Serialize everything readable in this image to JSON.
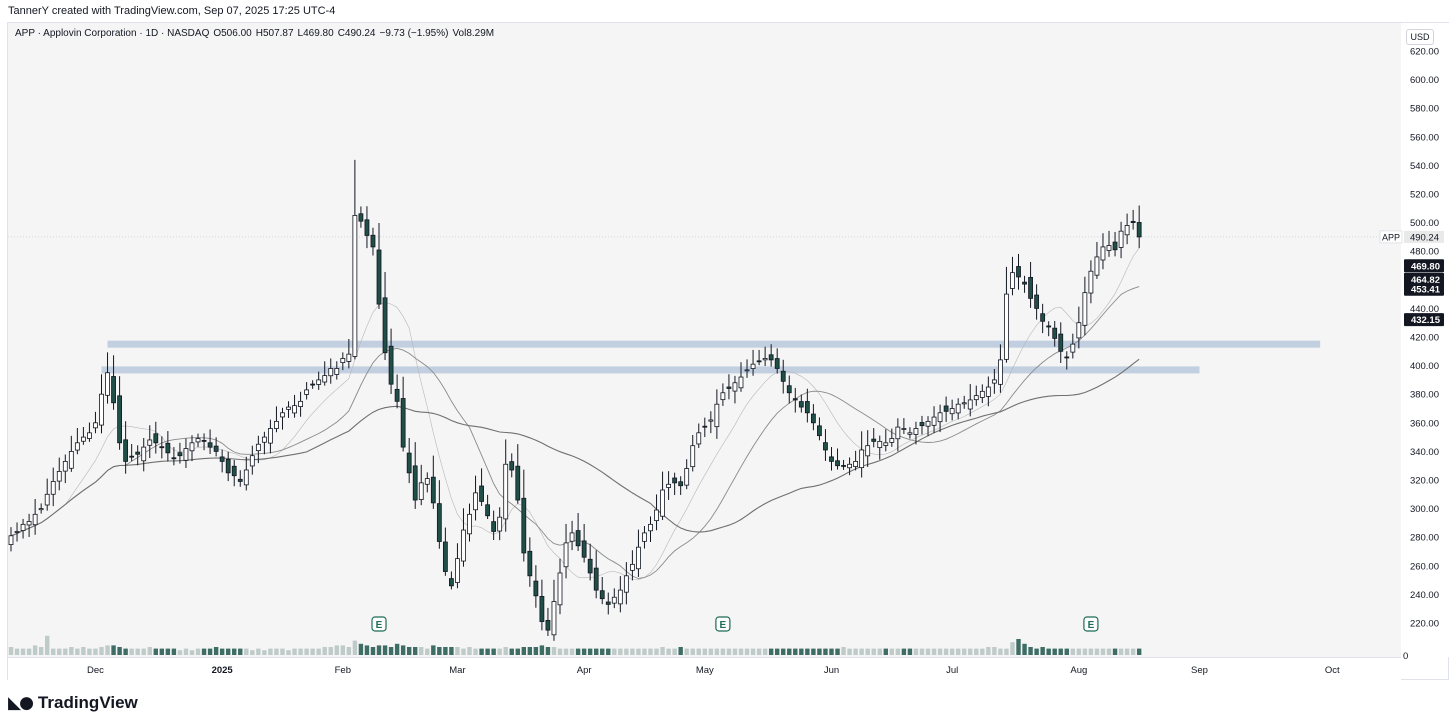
{
  "header": {
    "caption": "TannerY created with TradingView.com, Sep 07, 2025 17:25 UTC-4"
  },
  "legend": {
    "symbol_line": "APP · Applovin Corporation · 1D · NASDAQ",
    "open": "O506.00",
    "high": "H507.87",
    "low": "L469.80",
    "close": "C490.24",
    "change": "−9.73 (−1.95%)",
    "volume": "Vol8.29M"
  },
  "scale": {
    "currency": "USD",
    "ticks": [
      "620.00",
      "600.00",
      "580.00",
      "560.00",
      "540.00",
      "520.00",
      "500.00",
      "480.00",
      "460.00",
      "440.00",
      "420.00",
      "400.00",
      "380.00",
      "360.00",
      "340.00",
      "320.00",
      "300.00",
      "280.00",
      "260.00",
      "240.00",
      "220.00"
    ],
    "volume_zero": "0",
    "symbol_tag": "APP",
    "last_price": "490.24",
    "ma_tags": [
      "469.80",
      "464.82",
      "453.41",
      "432.15"
    ]
  },
  "footer": {
    "brand": "TradingView"
  },
  "colors": {
    "up": "#ffffff",
    "down": "#1f4f47",
    "wick": "#131722",
    "zone": "#b8c8dc",
    "ma": "#8a8a8a",
    "accent": "#1e6b57"
  },
  "chart_data": {
    "type": "candlestick",
    "symbol": "APP",
    "timeframe": "1D",
    "ylim": [
      210,
      630
    ],
    "x_ticks": [
      "Dec",
      "2025",
      "Feb",
      "Mar",
      "Apr",
      "May",
      "Jun",
      "Jul",
      "Aug",
      "Sep",
      "Oct"
    ],
    "x_tick_bar_index": [
      14,
      35,
      55,
      74,
      95,
      115,
      136,
      156,
      177,
      197,
      219
    ],
    "earnings_markers": [
      {
        "label": "E",
        "bar_index": 61
      },
      {
        "label": "E",
        "bar_index": 118
      },
      {
        "label": "E",
        "bar_index": 179
      }
    ],
    "zones": [
      {
        "price": 415,
        "from_index": 16,
        "to_index": 217
      },
      {
        "price": 397,
        "from_index": 15,
        "to_index": 197
      }
    ],
    "close": [
      281,
      284,
      289,
      291,
      296,
      300,
      310,
      319,
      326,
      333,
      340,
      346,
      350,
      353,
      360,
      380,
      395,
      374,
      346,
      333,
      336,
      338,
      343,
      348,
      346,
      343,
      339,
      335,
      337,
      342,
      346,
      349,
      347,
      343,
      340,
      333,
      325,
      323,
      319,
      327,
      337,
      345,
      350,
      356,
      361,
      367,
      371,
      372,
      375,
      383,
      387,
      390,
      393,
      398,
      398,
      405,
      408,
      505,
      501,
      491,
      483,
      443,
      409,
      387,
      375,
      343,
      325,
      306,
      318,
      321,
      304,
      277,
      256,
      246,
      265,
      285,
      296,
      311,
      305,
      295,
      284,
      294,
      331,
      327,
      306,
      269,
      253,
      239,
      221,
      215,
      235,
      255,
      276,
      283,
      274,
      266,
      255,
      243,
      237,
      233,
      238,
      243,
      253,
      261,
      273,
      283,
      289,
      299,
      313,
      317,
      318,
      316,
      328,
      344,
      353,
      357,
      362,
      373,
      381,
      384,
      388,
      392,
      397,
      401,
      403,
      405,
      404,
      398,
      389,
      381,
      376,
      371,
      367,
      360,
      351,
      341,
      333,
      330,
      330,
      331,
      333,
      341,
      344,
      347,
      347,
      346,
      349,
      357,
      356,
      353,
      356,
      358,
      361,
      364,
      367,
      368,
      370,
      373,
      374,
      376,
      379,
      382,
      385,
      390,
      404,
      450,
      465,
      462,
      457,
      447,
      440,
      431,
      427,
      419,
      410,
      406,
      415,
      430,
      451,
      466,
      476,
      483,
      484,
      481,
      494,
      498,
      500,
      490
    ],
    "volume": [
      5,
      4,
      4,
      4,
      6,
      5,
      12,
      4,
      4,
      4,
      5,
      4,
      5,
      4,
      4,
      5,
      6,
      6,
      5,
      4,
      4,
      4,
      4,
      5,
      4,
      4,
      4,
      4,
      3,
      4,
      3,
      4,
      4,
      4,
      5,
      4,
      4,
      4,
      4,
      4,
      3,
      4,
      3,
      4,
      4,
      4,
      3,
      4,
      4,
      4,
      4,
      4,
      5,
      5,
      6,
      6,
      5,
      9,
      7,
      6,
      5,
      6,
      6,
      5,
      7,
      6,
      5,
      5,
      5,
      4,
      6,
      5,
      5,
      5,
      5,
      4,
      5,
      4,
      4,
      4,
      4,
      4,
      5,
      4,
      4,
      5,
      5,
      5,
      6,
      5,
      5,
      4,
      4,
      4,
      4,
      4,
      4,
      4,
      4,
      4,
      4,
      4,
      4,
      4,
      4,
      4,
      4,
      4,
      5,
      4,
      4,
      5,
      4,
      4,
      4,
      4,
      4,
      4,
      4,
      4,
      4,
      4,
      4,
      4,
      4,
      4,
      4,
      4,
      4,
      4,
      4,
      4,
      4,
      4,
      4,
      4,
      4,
      4,
      5,
      4,
      4,
      4,
      4,
      4,
      4,
      4,
      4,
      4,
      4,
      4,
      4,
      4,
      4,
      4,
      4,
      4,
      4,
      4,
      4,
      4,
      4,
      4,
      5,
      5,
      4,
      4,
      8,
      10,
      7,
      5,
      4,
      5,
      4,
      4,
      4,
      4,
      4,
      4,
      4,
      4,
      4,
      4,
      4,
      4,
      4,
      4,
      4,
      4
    ]
  }
}
